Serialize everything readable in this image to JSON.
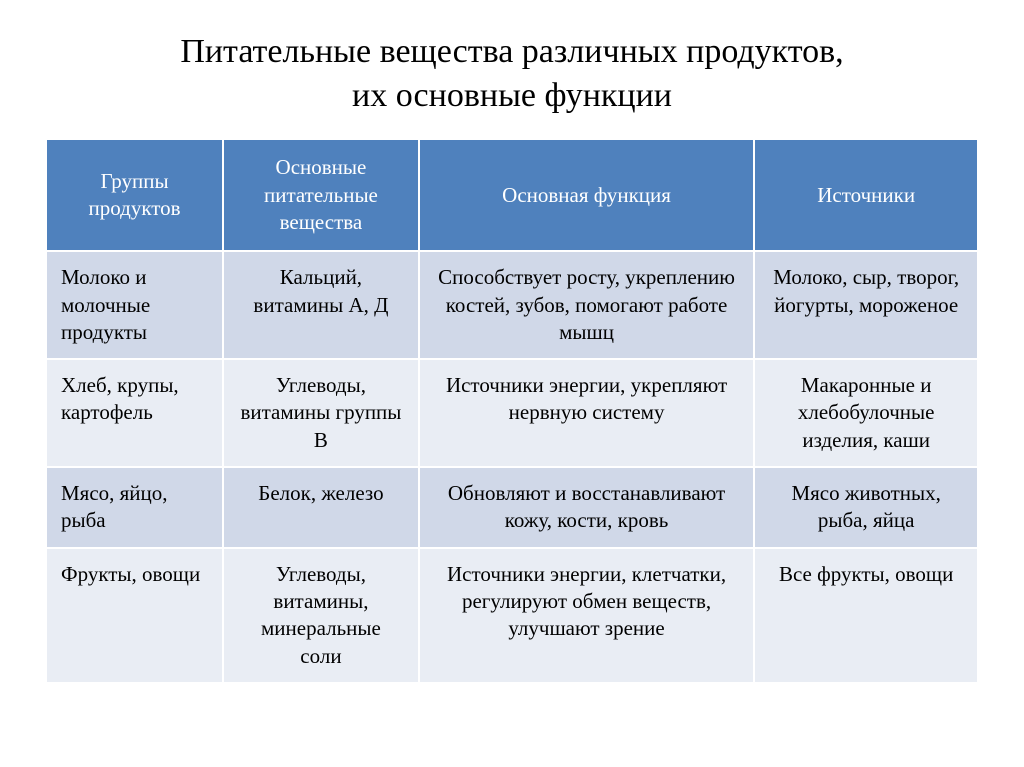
{
  "title_line1": "Питательные вещества различных продуктов,",
  "title_line2": "их основные функции",
  "table": {
    "headers": [
      "Группы продуктов",
      "Основные питательные вещества",
      "Основная функция",
      "Источники"
    ],
    "rows": [
      {
        "group": "Молоко и молочные продукты",
        "nutrients": "Кальций, витамины А, Д",
        "function": "Способствует росту, укреплению костей, зубов, помогают работе мышц",
        "sources": "Молоко, сыр, творог, йогурты, мороженое"
      },
      {
        "group": "Хлеб, крупы, картофель",
        "nutrients": "Углеводы, витамины группы В",
        "function": "Источники энергии, укрепляют нервную систему",
        "sources": "Макаронные и хлебобулочные изделия, каши"
      },
      {
        "group": "Мясо, яйцо, рыба",
        "nutrients": "Белок, железо",
        "function": "Обновляют и восстанавливают кожу, кости, кровь",
        "sources": "Мясо животных, рыба, яйца"
      },
      {
        "group": "Фрукты, овощи",
        "nutrients": "Углеводы, витамины, минеральные соли",
        "function": "Источники энергии, клетчатки, регулируют обмен веществ, улучшают зрение",
        "sources": "Все фрукты, овощи"
      }
    ]
  },
  "colors": {
    "header_bg": "#4f81bd",
    "header_text": "#ffffff",
    "row_odd_bg": "#d0d8e8",
    "row_even_bg": "#e9edf4",
    "border": "#ffffff",
    "text": "#000000"
  },
  "layout": {
    "col_widths_pct": [
      19,
      21,
      36,
      24
    ],
    "title_fontsize": 34,
    "cell_fontsize": 21
  }
}
